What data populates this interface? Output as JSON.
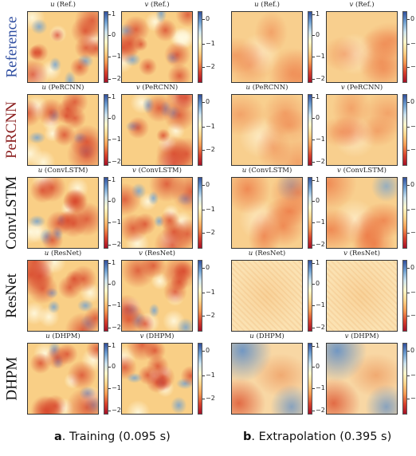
{
  "rows": [
    {
      "label": "Reference",
      "color": "#2f4ea1",
      "titles": [
        "(Ref.)",
        "(Ref.)",
        "(Ref.)",
        "(Ref.)"
      ]
    },
    {
      "label": "PeRCNN",
      "color": "#8b1f1f",
      "titles": [
        "(PeRCNN)",
        "(PeRCNN)",
        "(PeRCNN)",
        "(PeRCNN)"
      ]
    },
    {
      "label": "ConvLSTM",
      "color": "#111111",
      "titles": [
        "(ConvLSTM)",
        "(ConvLSTM)",
        "(ConvLSTM)",
        "(ConvLSTM)"
      ]
    },
    {
      "label": "ResNet",
      "color": "#111111",
      "titles": [
        "(ResNet)",
        "(ResNet)",
        "(ResNet)",
        "(ResNet)"
      ]
    },
    {
      "label": "DHPM",
      "color": "#111111",
      "titles": [
        "(DHPM)",
        "(DHPM)",
        "(DHPM)",
        "(DHPM)"
      ]
    }
  ],
  "variables": [
    "u",
    "v",
    "u",
    "v"
  ],
  "colorbar_ticks": {
    "u": [
      "1",
      "0",
      "−1",
      "−2"
    ],
    "v": [
      "0",
      "−1",
      "−2"
    ]
  },
  "captions": {
    "a": {
      "letter": "a",
      "text": ". Training (0.095 s)"
    },
    "b": {
      "letter": "b",
      "text": ". Extrapolation (0.395 s)"
    }
  },
  "colors": {
    "field_base": "#fde6a8",
    "low": "#c9302c",
    "high": "#4a7fc0"
  }
}
